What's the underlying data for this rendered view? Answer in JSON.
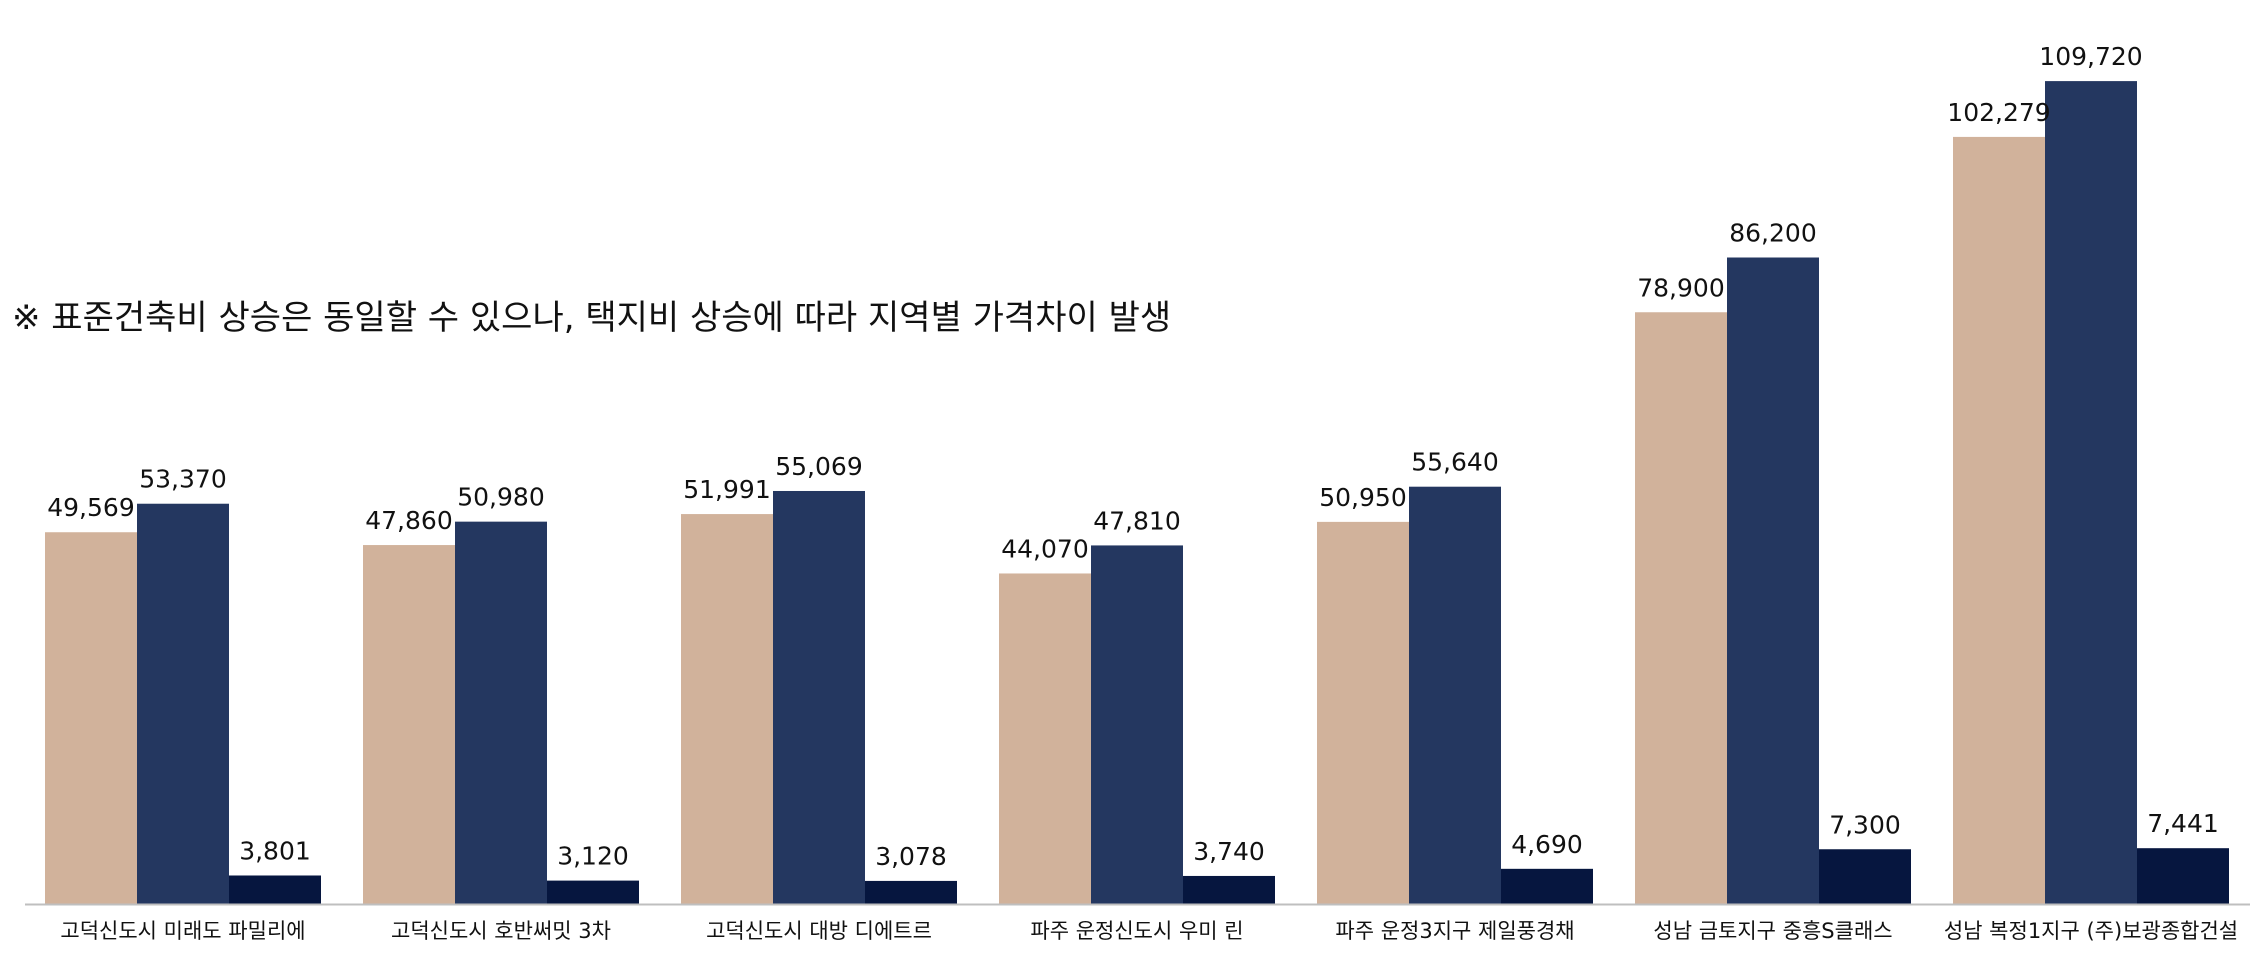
{
  "chart_data": {
    "type": "bar",
    "title": "",
    "xlabel": "",
    "ylabel": "",
    "annotation": "※ 표준건축비 상승은 동일할 수 있으나, 택지비 상승에 따라 지역별 가격차이 발생",
    "categories": [
      "고덕신도시 미래도 파밀리에",
      "고덕신도시 호반써밋 3차",
      "고덕신도시 대방 디에트르",
      "파주 운정신도시 우미 린",
      "파주 운정3지구 제일풍경채",
      "성남 금토지구 중흥S클래스",
      "성남 복정1지구 (주)보광종합건설"
    ],
    "series": [
      {
        "color": "#D1B29B",
        "values": [
          49569,
          47860,
          51991,
          44070,
          50950,
          78900,
          102279
        ],
        "labels": [
          "49,569",
          "47,860",
          "51,991",
          "44,070",
          "50,950",
          "78,900",
          "102,279"
        ]
      },
      {
        "color": "#243760",
        "values": [
          53370,
          50980,
          55069,
          47810,
          55640,
          86200,
          109720
        ],
        "labels": [
          "53,370",
          "50,980",
          "55,069",
          "47,810",
          "55,640",
          "86,200",
          "109,720"
        ]
      },
      {
        "color": "#06163F",
        "values": [
          3801,
          3120,
          3078,
          3740,
          4690,
          7300,
          7441
        ],
        "labels": [
          "3,801",
          "3,120",
          "3,078",
          "3,740",
          "4,690",
          "7,300",
          "7,441"
        ]
      }
    ],
    "ylim": [
      0,
      116000
    ],
    "grid": false,
    "legend": "none",
    "axis_color": "#BFBFBF"
  }
}
